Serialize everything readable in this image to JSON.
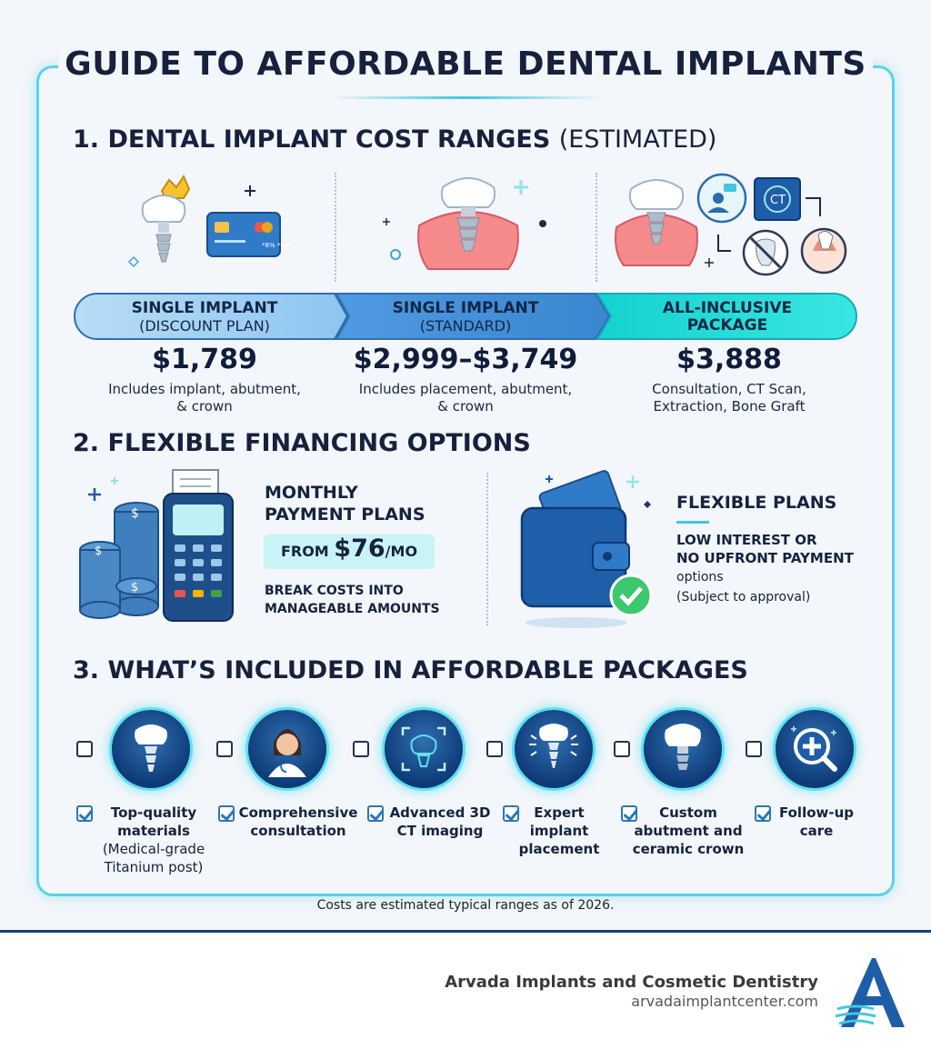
{
  "title": "GUIDE TO AFFORDABLE DENTAL IMPLANTS",
  "section1": {
    "title": "1. DENTAL IMPLANT COST RANGES",
    "title_suffix": "(ESTIMATED)",
    "plans": [
      {
        "name": "SINGLE IMPLANT",
        "sub": "(DISCOUNT PLAN)",
        "price": "$1,789",
        "desc1": "Includes implant, abutment,",
        "desc2": "& crown"
      },
      {
        "name": "SINGLE IMPLANT",
        "sub": "(STANDARD)",
        "price": "$2,999–$3,749",
        "desc1": "Includes placement, abutment,",
        "desc2": "& crown"
      },
      {
        "name": "ALL-INCLUSIVE",
        "sub": "PACKAGE",
        "price": "$3,888",
        "desc1": "Consultation, CT Scan,",
        "desc2": "Extraction, Bone Graft"
      }
    ],
    "card_text": "*8% *GM",
    "ct_label": "CT"
  },
  "section2": {
    "title": "2. FLEXIBLE FINANCING OPTIONS",
    "monthly": {
      "head1": "MONTHLY",
      "head2": "PAYMENT PLANS",
      "from": "FROM",
      "amount": "$76",
      "per": "/MO",
      "sub1": "BREAK COSTS INTO",
      "sub2": "MANAGEABLE AMOUNTS"
    },
    "flexible": {
      "head": "FLEXIBLE PLANS",
      "sub1": "LOW INTEREST OR",
      "sub2": "NO UPFRONT PAYMENT",
      "note1": "options",
      "note2": "(Subject to approval)"
    }
  },
  "section3": {
    "title": "3. WHAT’S INCLUDED IN AFFORDABLE PACKAGES",
    "items": [
      {
        "l1": "Top-quality",
        "l2": "materials",
        "l3": "(Medical-grade",
        "l4": "Titanium post)",
        "icon": "implant-icon"
      },
      {
        "l1": "Comprehensive",
        "l2": "consultation",
        "icon": "doctor-icon"
      },
      {
        "l1": "Advanced 3D",
        "l2": "CT imaging",
        "icon": "scan-icon"
      },
      {
        "l1": "Expert",
        "l2": "implant",
        "l3": "placement",
        "icon": "placement-icon"
      },
      {
        "l1": "Custom",
        "l2": "abutment and",
        "l3": "ceramic crown",
        "icon": "crown-icon"
      },
      {
        "l1": "Follow-up",
        "l2": "care",
        "icon": "search-plus-icon"
      }
    ]
  },
  "footnote": "Costs are estimated typical ranges as of 2026.",
  "footer": {
    "name": "Arvada Implants and Cosmetic Dentistry",
    "url": "arvadaimplantcenter.com"
  },
  "colors": {
    "accent": "#3fc8df",
    "navy": "#15233f",
    "bar1": "#8fc8f0",
    "bar2": "#3f8fd6",
    "bar3": "#27e0d9"
  }
}
